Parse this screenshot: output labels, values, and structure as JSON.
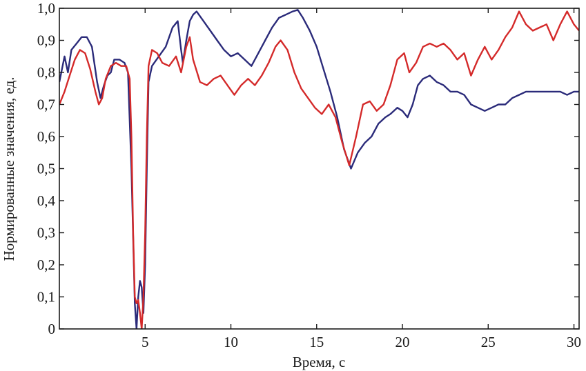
{
  "chart_data": {
    "type": "line",
    "title": "",
    "xlabel": "Время, с",
    "ylabel": "Нормированные значения, ед.",
    "xlim": [
      0,
      30.3
    ],
    "ylim": [
      0,
      1.0
    ],
    "grid": false,
    "legend": "none",
    "x_ticks": [
      {
        "value": 5,
        "label": "5"
      },
      {
        "value": 10,
        "label": "10"
      },
      {
        "value": 15,
        "label": "15"
      },
      {
        "value": 20,
        "label": "20"
      },
      {
        "value": 25,
        "label": "25"
      },
      {
        "value": 30,
        "label": "30"
      }
    ],
    "y_ticks": [
      {
        "value": 0,
        "label": "0"
      },
      {
        "value": 0.1,
        "label": "0,1"
      },
      {
        "value": 0.2,
        "label": "0,2"
      },
      {
        "value": 0.3,
        "label": "0,3"
      },
      {
        "value": 0.4,
        "label": "0,4"
      },
      {
        "value": 0.5,
        "label": "0,5"
      },
      {
        "value": 0.6,
        "label": "0,6"
      },
      {
        "value": 0.7,
        "label": "0,7"
      },
      {
        "value": 0.8,
        "label": "0,8"
      },
      {
        "value": 0.9,
        "label": "0,9"
      },
      {
        "value": 1.0,
        "label": "1,0"
      }
    ],
    "series": [
      {
        "color": "#2b2b7a",
        "points": [
          [
            0.0,
            0.77
          ],
          [
            0.3,
            0.85
          ],
          [
            0.5,
            0.8
          ],
          [
            0.7,
            0.87
          ],
          [
            1.0,
            0.89
          ],
          [
            1.3,
            0.91
          ],
          [
            1.6,
            0.91
          ],
          [
            1.9,
            0.88
          ],
          [
            2.2,
            0.77
          ],
          [
            2.4,
            0.72
          ],
          [
            2.6,
            0.76
          ],
          [
            2.8,
            0.79
          ],
          [
            3.0,
            0.8
          ],
          [
            3.2,
            0.84
          ],
          [
            3.5,
            0.84
          ],
          [
            3.8,
            0.83
          ],
          [
            4.0,
            0.8
          ],
          [
            4.2,
            0.5
          ],
          [
            4.4,
            0.08
          ],
          [
            4.5,
            0.0
          ],
          [
            4.6,
            0.1
          ],
          [
            4.7,
            0.15
          ],
          [
            4.8,
            0.13
          ],
          [
            4.9,
            0.05
          ],
          [
            5.0,
            0.2
          ],
          [
            5.1,
            0.5
          ],
          [
            5.2,
            0.77
          ],
          [
            5.4,
            0.82
          ],
          [
            5.8,
            0.85
          ],
          [
            6.2,
            0.88
          ],
          [
            6.6,
            0.94
          ],
          [
            6.9,
            0.96
          ],
          [
            7.1,
            0.87
          ],
          [
            7.2,
            0.83
          ],
          [
            7.4,
            0.9
          ],
          [
            7.6,
            0.96
          ],
          [
            7.8,
            0.98
          ],
          [
            8.0,
            0.99
          ],
          [
            8.4,
            0.96
          ],
          [
            8.8,
            0.93
          ],
          [
            9.2,
            0.9
          ],
          [
            9.6,
            0.87
          ],
          [
            10.0,
            0.85
          ],
          [
            10.4,
            0.86
          ],
          [
            10.8,
            0.84
          ],
          [
            11.2,
            0.82
          ],
          [
            11.6,
            0.86
          ],
          [
            12.0,
            0.9
          ],
          [
            12.4,
            0.94
          ],
          [
            12.8,
            0.97
          ],
          [
            13.2,
            0.98
          ],
          [
            13.6,
            0.99
          ],
          [
            13.9,
            0.995
          ],
          [
            14.2,
            0.97
          ],
          [
            14.6,
            0.93
          ],
          [
            15.0,
            0.88
          ],
          [
            15.4,
            0.81
          ],
          [
            15.8,
            0.74
          ],
          [
            16.2,
            0.66
          ],
          [
            16.6,
            0.56
          ],
          [
            17.0,
            0.5
          ],
          [
            17.4,
            0.55
          ],
          [
            17.8,
            0.58
          ],
          [
            18.2,
            0.6
          ],
          [
            18.6,
            0.64
          ],
          [
            19.0,
            0.66
          ],
          [
            19.3,
            0.67
          ],
          [
            19.7,
            0.69
          ],
          [
            20.0,
            0.68
          ],
          [
            20.3,
            0.66
          ],
          [
            20.6,
            0.7
          ],
          [
            20.9,
            0.76
          ],
          [
            21.2,
            0.78
          ],
          [
            21.6,
            0.79
          ],
          [
            22.0,
            0.77
          ],
          [
            22.4,
            0.76
          ],
          [
            22.8,
            0.74
          ],
          [
            23.2,
            0.74
          ],
          [
            23.6,
            0.73
          ],
          [
            24.0,
            0.7
          ],
          [
            24.4,
            0.69
          ],
          [
            24.8,
            0.68
          ],
          [
            25.2,
            0.69
          ],
          [
            25.6,
            0.7
          ],
          [
            26.0,
            0.7
          ],
          [
            26.4,
            0.72
          ],
          [
            26.8,
            0.73
          ],
          [
            27.2,
            0.74
          ],
          [
            27.6,
            0.74
          ],
          [
            28.0,
            0.74
          ],
          [
            28.4,
            0.74
          ],
          [
            28.8,
            0.74
          ],
          [
            29.2,
            0.74
          ],
          [
            29.6,
            0.73
          ],
          [
            30.0,
            0.74
          ],
          [
            30.3,
            0.74
          ]
        ]
      },
      {
        "color": "#d42a2a",
        "points": [
          [
            0.0,
            0.7
          ],
          [
            0.3,
            0.74
          ],
          [
            0.6,
            0.79
          ],
          [
            0.9,
            0.84
          ],
          [
            1.2,
            0.87
          ],
          [
            1.5,
            0.86
          ],
          [
            1.8,
            0.81
          ],
          [
            2.1,
            0.74
          ],
          [
            2.3,
            0.7
          ],
          [
            2.5,
            0.72
          ],
          [
            2.7,
            0.78
          ],
          [
            3.0,
            0.82
          ],
          [
            3.3,
            0.83
          ],
          [
            3.6,
            0.82
          ],
          [
            3.9,
            0.82
          ],
          [
            4.1,
            0.78
          ],
          [
            4.2,
            0.6
          ],
          [
            4.3,
            0.3
          ],
          [
            4.4,
            0.1
          ],
          [
            4.5,
            0.08
          ],
          [
            4.6,
            0.09
          ],
          [
            4.7,
            0.05
          ],
          [
            4.8,
            0.0
          ],
          [
            4.9,
            0.1
          ],
          [
            5.0,
            0.3
          ],
          [
            5.1,
            0.6
          ],
          [
            5.2,
            0.82
          ],
          [
            5.4,
            0.87
          ],
          [
            5.7,
            0.86
          ],
          [
            6.0,
            0.83
          ],
          [
            6.4,
            0.82
          ],
          [
            6.8,
            0.85
          ],
          [
            7.1,
            0.8
          ],
          [
            7.4,
            0.88
          ],
          [
            7.6,
            0.91
          ],
          [
            7.8,
            0.84
          ],
          [
            8.2,
            0.77
          ],
          [
            8.6,
            0.76
          ],
          [
            9.0,
            0.78
          ],
          [
            9.4,
            0.79
          ],
          [
            9.8,
            0.76
          ],
          [
            10.2,
            0.73
          ],
          [
            10.6,
            0.76
          ],
          [
            11.0,
            0.78
          ],
          [
            11.4,
            0.76
          ],
          [
            11.8,
            0.79
          ],
          [
            12.2,
            0.83
          ],
          [
            12.6,
            0.88
          ],
          [
            12.9,
            0.9
          ],
          [
            13.3,
            0.87
          ],
          [
            13.7,
            0.8
          ],
          [
            14.1,
            0.75
          ],
          [
            14.5,
            0.72
          ],
          [
            14.9,
            0.69
          ],
          [
            15.3,
            0.67
          ],
          [
            15.7,
            0.7
          ],
          [
            16.1,
            0.66
          ],
          [
            16.5,
            0.58
          ],
          [
            16.9,
            0.51
          ],
          [
            17.3,
            0.6
          ],
          [
            17.7,
            0.7
          ],
          [
            18.1,
            0.71
          ],
          [
            18.5,
            0.68
          ],
          [
            18.9,
            0.7
          ],
          [
            19.3,
            0.76
          ],
          [
            19.7,
            0.84
          ],
          [
            20.1,
            0.86
          ],
          [
            20.4,
            0.8
          ],
          [
            20.8,
            0.83
          ],
          [
            21.2,
            0.88
          ],
          [
            21.6,
            0.89
          ],
          [
            22.0,
            0.88
          ],
          [
            22.4,
            0.89
          ],
          [
            22.8,
            0.87
          ],
          [
            23.2,
            0.84
          ],
          [
            23.6,
            0.86
          ],
          [
            24.0,
            0.79
          ],
          [
            24.4,
            0.84
          ],
          [
            24.8,
            0.88
          ],
          [
            25.2,
            0.84
          ],
          [
            25.6,
            0.87
          ],
          [
            26.0,
            0.91
          ],
          [
            26.4,
            0.94
          ],
          [
            26.8,
            0.99
          ],
          [
            27.2,
            0.95
          ],
          [
            27.6,
            0.93
          ],
          [
            28.0,
            0.94
          ],
          [
            28.4,
            0.95
          ],
          [
            28.8,
            0.9
          ],
          [
            29.2,
            0.95
          ],
          [
            29.6,
            0.99
          ],
          [
            30.0,
            0.95
          ],
          [
            30.3,
            0.93
          ]
        ]
      }
    ]
  }
}
